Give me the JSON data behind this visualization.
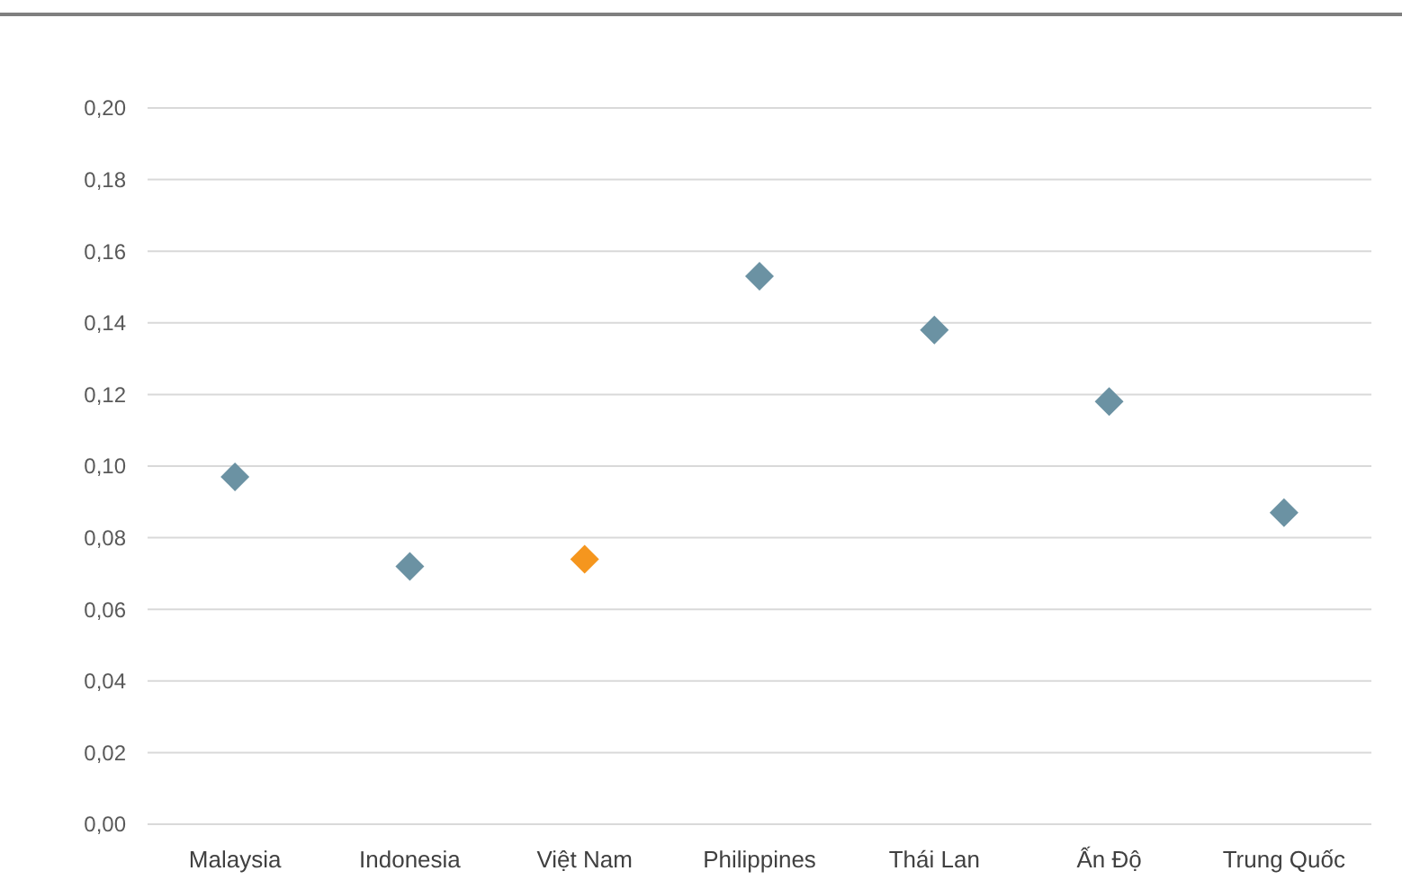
{
  "chart_data": {
    "type": "scatter",
    "categories": [
      "Malaysia",
      "Indonesia",
      "Việt Nam",
      "Philippines",
      "Thái Lan",
      "Ấn Độ",
      "Trung Quốc"
    ],
    "series": [
      {
        "values": [
          0.097,
          0.072,
          0.074,
          0.153,
          0.138,
          0.118,
          0.087
        ],
        "colors": [
          "#6b92a3",
          "#6b92a3",
          "#f5961e",
          "#6b92a3",
          "#6b92a3",
          "#6b92a3",
          "#6b92a3"
        ]
      }
    ],
    "ylim": [
      0,
      0.2
    ],
    "yticks": [
      {
        "value": 0,
        "label": "0,00"
      },
      {
        "value": 0.02,
        "label": "0,02"
      },
      {
        "value": 0.04,
        "label": "0,04"
      },
      {
        "value": 0.06,
        "label": "0,06"
      },
      {
        "value": 0.08,
        "label": "0,08"
      },
      {
        "value": 0.1,
        "label": "0,10"
      },
      {
        "value": 0.12,
        "label": "0,12"
      },
      {
        "value": 0.14,
        "label": "0,14"
      },
      {
        "value": 0.16,
        "label": "0,16"
      },
      {
        "value": 0.18,
        "label": "0,18"
      },
      {
        "value": 0.2,
        "label": "0,20"
      }
    ],
    "grid": "y",
    "marker": "diamond"
  }
}
